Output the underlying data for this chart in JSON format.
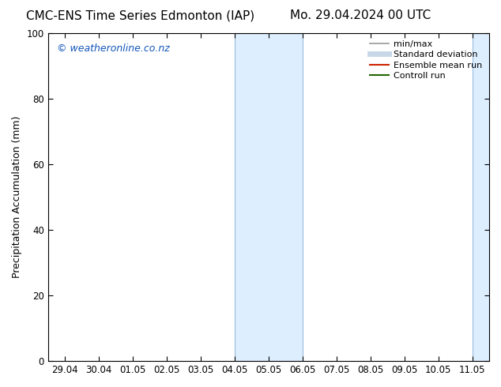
{
  "title_left": "CMC-ENS Time Series Edmonton (IAP)",
  "title_right": "Mo. 29.04.2024 00 UTC",
  "ylabel": "Precipitation Accumulation (mm)",
  "watermark": "© weatheronline.co.nz",
  "watermark_color": "#1155bb",
  "ylim": [
    0,
    100
  ],
  "xlim_start": -0.5,
  "xlim_end": 12.5,
  "highlight_start": 5,
  "highlight_end": 7,
  "highlight_color": "#ddeeff",
  "highlight_edge_color": "#99bbdd",
  "bg_color": "#ffffff",
  "plot_bg_color": "#ffffff",
  "tick_labels": [
    "29.04",
    "30.04",
    "01.05",
    "02.05",
    "03.05",
    "04.05",
    "05.05",
    "06.05",
    "07.05",
    "08.05",
    "09.05",
    "10.05",
    "11.05"
  ],
  "tick_positions": [
    0,
    1,
    2,
    3,
    4,
    5,
    6,
    7,
    8,
    9,
    10,
    11,
    12
  ],
  "yticks": [
    0,
    20,
    40,
    60,
    80,
    100
  ],
  "legend_items": [
    {
      "label": "min/max",
      "color": "#999999",
      "lw": 1.2,
      "type": "line"
    },
    {
      "label": "Standard deviation",
      "color": "#c8d8e8",
      "lw": 5,
      "type": "line"
    },
    {
      "label": "Ensemble mean run",
      "color": "#cc2200",
      "lw": 1.5,
      "type": "line"
    },
    {
      "label": "Controll run",
      "color": "#226600",
      "lw": 1.5,
      "type": "line"
    }
  ],
  "title_fontsize": 11,
  "label_fontsize": 9,
  "tick_fontsize": 8.5,
  "watermark_fontsize": 9,
  "legend_fontsize": 8
}
